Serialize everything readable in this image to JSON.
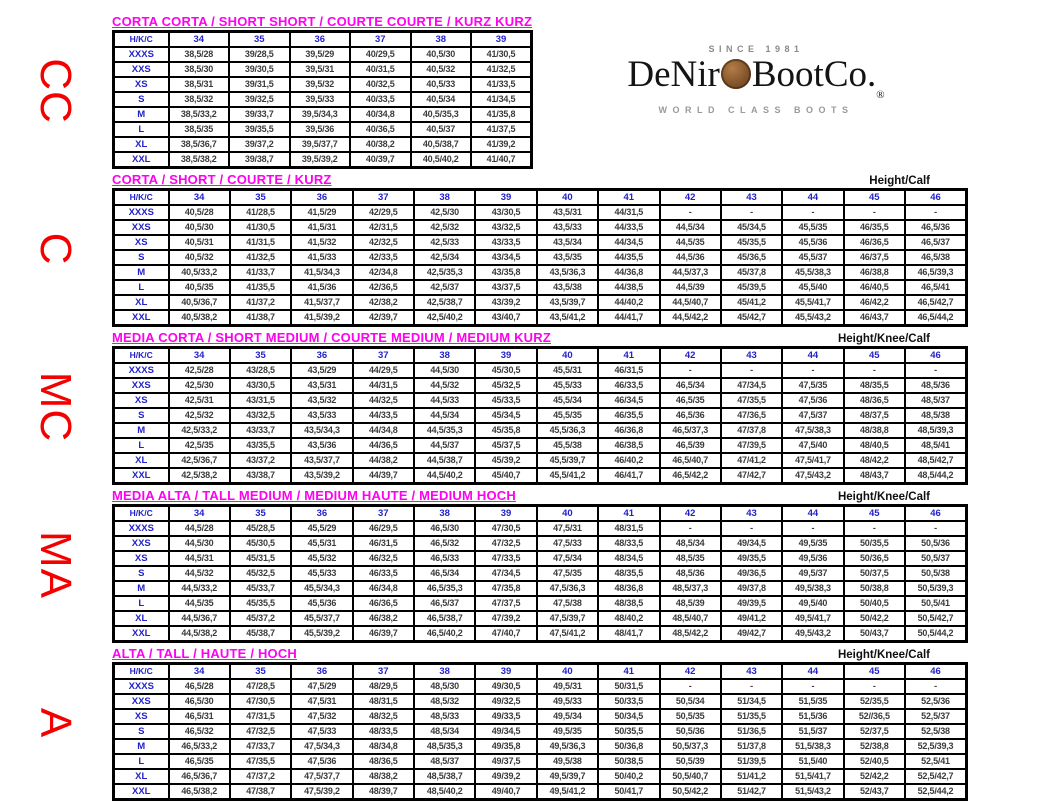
{
  "page": {
    "corner_header": "H/K/C",
    "colors": {
      "title_magenta": "#ff00f0",
      "header_blue": "#2222cc",
      "side_red": "#f50000",
      "cell_text": "#3b3b3b",
      "border_black": "#000000"
    },
    "logo": {
      "since": "SINCE 1981",
      "brand_prefix": "DeNir",
      "coin_icon": "copper-coin-o",
      "brand_suffix": "BootCo.",
      "registered_mark": "®",
      "tagline": "WORLD CLASS BOOTS"
    }
  },
  "tables": [
    {
      "side_label": "CC",
      "title": "CORTA CORTA / SHORT SHORT / COURTE COURTE / KURZ KURZ",
      "height_label": "",
      "columns": [
        "34",
        "35",
        "36",
        "37",
        "38",
        "39"
      ],
      "rows": [
        {
          "label": "XXXS",
          "values": [
            "38,5/28",
            "39/28,5",
            "39,5/29",
            "40/29,5",
            "40,5/30",
            "41/30,5"
          ]
        },
        {
          "label": "XXS",
          "values": [
            "38,5/30",
            "39/30,5",
            "39,5/31",
            "40/31,5",
            "40,5/32",
            "41/32,5"
          ]
        },
        {
          "label": "XS",
          "values": [
            "38,5/31",
            "39/31,5",
            "39,5/32",
            "40/32,5",
            "40,5/33",
            "41/33,5"
          ]
        },
        {
          "label": "S",
          "values": [
            "38,5/32",
            "39/32,5",
            "39,5/33",
            "40/33,5",
            "40,5/34",
            "41/34,5"
          ]
        },
        {
          "label": "M",
          "values": [
            "38,5/33,2",
            "39/33,7",
            "39,5/34,3",
            "40/34,8",
            "40,5/35,3",
            "41/35,8"
          ]
        },
        {
          "label": "L",
          "values": [
            "38,5/35",
            "39/35,5",
            "39,5/36",
            "40/36,5",
            "40,5/37",
            "41/37,5"
          ]
        },
        {
          "label": "XL",
          "values": [
            "38,5/36,7",
            "39/37,2",
            "39,5/37,7",
            "40/38,2",
            "40,5/38,7",
            "41/39,2"
          ]
        },
        {
          "label": "XXL",
          "values": [
            "38,5/38,2",
            "39/38,7",
            "39,5/39,2",
            "40/39,7",
            "40,5/40,2",
            "41/40,7"
          ]
        }
      ]
    },
    {
      "side_label": "C",
      "title": "CORTA / SHORT / COURTE / KURZ",
      "height_label": "Height/Calf",
      "columns": [
        "34",
        "35",
        "36",
        "37",
        "38",
        "39",
        "40",
        "41",
        "42",
        "43",
        "44",
        "45",
        "46"
      ],
      "rows": [
        {
          "label": "XXXS",
          "values": [
            "40,5/28",
            "41/28,5",
            "41,5/29",
            "42/29,5",
            "42,5/30",
            "43/30,5",
            "43,5/31",
            "44/31,5",
            "-",
            "-",
            "-",
            "-",
            "-"
          ]
        },
        {
          "label": "XXS",
          "values": [
            "40,5/30",
            "41/30,5",
            "41,5/31",
            "42/31,5",
            "42,5/32",
            "43/32,5",
            "43,5/33",
            "44/33,5",
            "44,5/34",
            "45/34,5",
            "45,5/35",
            "46/35,5",
            "46,5/36"
          ]
        },
        {
          "label": "XS",
          "values": [
            "40,5/31",
            "41/31,5",
            "41,5/32",
            "42/32,5",
            "42,5/33",
            "43/33,5",
            "43,5/34",
            "44/34,5",
            "44,5/35",
            "45/35,5",
            "45,5/36",
            "46/36,5",
            "46,5/37"
          ]
        },
        {
          "label": "S",
          "values": [
            "40,5/32",
            "41/32,5",
            "41,5/33",
            "42/33,5",
            "42,5/34",
            "43/34,5",
            "43,5/35",
            "44/35,5",
            "44,5/36",
            "45/36,5",
            "45,5/37",
            "46/37,5",
            "46,5/38"
          ]
        },
        {
          "label": "M",
          "values": [
            "40,5/33,2",
            "41/33,7",
            "41,5/34,3",
            "42/34,8",
            "42,5/35,3",
            "43/35,8",
            "43,5/36,3",
            "44/36,8",
            "44,5/37,3",
            "45/37,8",
            "45,5/38,3",
            "46/38,8",
            "46,5/39,3"
          ]
        },
        {
          "label": "L",
          "values": [
            "40,5/35",
            "41/35,5",
            "41,5/36",
            "42/36,5",
            "42,5/37",
            "43/37,5",
            "43,5/38",
            "44/38,5",
            "44,5/39",
            "45/39,5",
            "45,5/40",
            "46/40,5",
            "46,5/41"
          ]
        },
        {
          "label": "XL",
          "values": [
            "40,5/36,7",
            "41/37,2",
            "41,5/37,7",
            "42/38,2",
            "42,5/38,7",
            "43/39,2",
            "43,5/39,7",
            "44/40,2",
            "44,5/40,7",
            "45/41,2",
            "45,5/41,7",
            "46/42,2",
            "46,5/42,7"
          ]
        },
        {
          "label": "XXL",
          "values": [
            "40,5/38,2",
            "41/38,7",
            "41,5/39,2",
            "42/39,7",
            "42,5/40,2",
            "43/40,7",
            "43,5/41,2",
            "44/41,7",
            "44,5/42,2",
            "45/42,7",
            "45,5/43,2",
            "46/43,7",
            "46,5/44,2"
          ]
        }
      ]
    },
    {
      "side_label": "MC",
      "title": "MEDIA CORTA / SHORT MEDIUM / COURTE MEDIUM / MEDIUM KURZ",
      "height_label": "Height/Knee/Calf",
      "columns": [
        "34",
        "35",
        "36",
        "37",
        "38",
        "39",
        "40",
        "41",
        "42",
        "43",
        "44",
        "45",
        "46"
      ],
      "rows": [
        {
          "label": "XXXS",
          "values": [
            "42,5/28",
            "43/28,5",
            "43,5/29",
            "44/29,5",
            "44,5/30",
            "45/30,5",
            "45,5/31",
            "46/31,5",
            "-",
            "-",
            "-",
            "-",
            "-"
          ]
        },
        {
          "label": "XXS",
          "values": [
            "42,5/30",
            "43/30,5",
            "43,5/31",
            "44/31,5",
            "44,5/32",
            "45/32,5",
            "45,5/33",
            "46/33,5",
            "46,5/34",
            "47/34,5",
            "47,5/35",
            "48/35,5",
            "48,5/36"
          ]
        },
        {
          "label": "XS",
          "values": [
            "42,5/31",
            "43/31,5",
            "43,5/32",
            "44/32,5",
            "44,5/33",
            "45/33,5",
            "45,5/34",
            "46/34,5",
            "46,5/35",
            "47/35,5",
            "47,5/36",
            "48/36,5",
            "48,5/37"
          ]
        },
        {
          "label": "S",
          "values": [
            "42,5/32",
            "43/32,5",
            "43,5/33",
            "44/33,5",
            "44,5/34",
            "45/34,5",
            "45,5/35",
            "46/35,5",
            "46,5/36",
            "47/36,5",
            "47,5/37",
            "48/37,5",
            "48,5/38"
          ]
        },
        {
          "label": "M",
          "values": [
            "42,5/33,2",
            "43/33,7",
            "43,5/34,3",
            "44/34,8",
            "44,5/35,3",
            "45/35,8",
            "45,5/36,3",
            "46/36,8",
            "46,5/37,3",
            "47/37,8",
            "47,5/38,3",
            "48/38,8",
            "48,5/39,3"
          ]
        },
        {
          "label": "L",
          "values": [
            "42,5/35",
            "43/35,5",
            "43,5/36",
            "44/36,5",
            "44,5/37",
            "45/37,5",
            "45,5/38",
            "46/38,5",
            "46,5/39",
            "47/39,5",
            "47,5/40",
            "48/40,5",
            "48,5/41"
          ]
        },
        {
          "label": "XL",
          "values": [
            "42,5/36,7",
            "43/37,2",
            "43,5/37,7",
            "44/38,2",
            "44,5/38,7",
            "45/39,2",
            "45,5/39,7",
            "46/40,2",
            "46,5/40,7",
            "47/41,2",
            "47,5/41,7",
            "48/42,2",
            "48,5/42,7"
          ]
        },
        {
          "label": "XXL",
          "values": [
            "42,5/38,2",
            "43/38,7",
            "43,5/39,2",
            "44/39,7",
            "44,5/40,2",
            "45/40,7",
            "45,5/41,2",
            "46/41,7",
            "46,5/42,2",
            "47/42,7",
            "47,5/43,2",
            "48/43,7",
            "48,5/44,2"
          ]
        }
      ]
    },
    {
      "side_label": "MA",
      "title": "MEDIA ALTA / TALL MEDIUM / MEDIUM HAUTE / MEDIUM HOCH",
      "height_label": "Height/Knee/Calf",
      "columns": [
        "34",
        "35",
        "36",
        "37",
        "38",
        "39",
        "40",
        "41",
        "42",
        "43",
        "44",
        "45",
        "46"
      ],
      "rows": [
        {
          "label": "XXXS",
          "values": [
            "44,5/28",
            "45/28,5",
            "45,5/29",
            "46/29,5",
            "46,5/30",
            "47/30,5",
            "47,5/31",
            "48/31,5",
            "-",
            "-",
            "-",
            "-",
            "-"
          ]
        },
        {
          "label": "XXS",
          "values": [
            "44,5/30",
            "45/30,5",
            "45,5/31",
            "46/31,5",
            "46,5/32",
            "47/32,5",
            "47,5/33",
            "48/33,5",
            "48,5/34",
            "49/34,5",
            "49,5/35",
            "50/35,5",
            "50,5/36"
          ]
        },
        {
          "label": "XS",
          "values": [
            "44,5/31",
            "45/31,5",
            "45,5/32",
            "46/32,5",
            "46,5/33",
            "47/33,5",
            "47,5/34",
            "48/34,5",
            "48,5/35",
            "49/35,5",
            "49,5/36",
            "50/36,5",
            "50,5/37"
          ]
        },
        {
          "label": "S",
          "values": [
            "44,5/32",
            "45/32,5",
            "45,5/33",
            "46/33,5",
            "46,5/34",
            "47/34,5",
            "47,5/35",
            "48/35,5",
            "48,5/36",
            "49/36,5",
            "49,5/37",
            "50/37,5",
            "50,5/38"
          ]
        },
        {
          "label": "M",
          "values": [
            "44,5/33,2",
            "45/33,7",
            "45,5/34,3",
            "46/34,8",
            "46,5/35,3",
            "47/35,8",
            "47,5/36,3",
            "48/36,8",
            "48,5/37,3",
            "49/37,8",
            "49,5/38,3",
            "50/38,8",
            "50,5/39,3"
          ]
        },
        {
          "label": "L",
          "values": [
            "44,5/35",
            "45/35,5",
            "45,5/36",
            "46/36,5",
            "46,5/37",
            "47/37,5",
            "47,5/38",
            "48/38,5",
            "48,5/39",
            "49/39,5",
            "49,5/40",
            "50/40,5",
            "50,5/41"
          ]
        },
        {
          "label": "XL",
          "values": [
            "44,5/36,7",
            "45/37,2",
            "45,5/37,7",
            "46/38,2",
            "46,5/38,7",
            "47/39,2",
            "47,5/39,7",
            "48/40,2",
            "48,5/40,7",
            "49/41,2",
            "49,5/41,7",
            "50/42,2",
            "50,5/42,7"
          ]
        },
        {
          "label": "XXL",
          "values": [
            "44,5/38,2",
            "45/38,7",
            "45,5/39,2",
            "46/39,7",
            "46,5/40,2",
            "47/40,7",
            "47,5/41,2",
            "48/41,7",
            "48,5/42,2",
            "49/42,7",
            "49,5/43,2",
            "50/43,7",
            "50,5/44,2"
          ]
        }
      ]
    },
    {
      "side_label": "A",
      "title": "ALTA / TALL / HAUTE / HOCH",
      "height_label": "Height/Knee/Calf",
      "columns": [
        "34",
        "35",
        "36",
        "37",
        "38",
        "39",
        "40",
        "41",
        "42",
        "43",
        "44",
        "45",
        "46"
      ],
      "rows": [
        {
          "label": "XXXS",
          "values": [
            "46,5/28",
            "47/28,5",
            "47,5/29",
            "48/29,5",
            "48,5/30",
            "49/30,5",
            "49,5/31",
            "50/31,5",
            "-",
            "-",
            "-",
            "-",
            "-"
          ]
        },
        {
          "label": "XXS",
          "values": [
            "46,5/30",
            "47/30,5",
            "47,5/31",
            "48/31,5",
            "48,5/32",
            "49/32,5",
            "49,5/33",
            "50/33,5",
            "50,5/34",
            "51/34,5",
            "51,5/35",
            "52/35,5",
            "52,5/36"
          ]
        },
        {
          "label": "XS",
          "values": [
            "46,5/31",
            "47/31,5",
            "47,5/32",
            "48/32,5",
            "48,5/33",
            "49/33,5",
            "49,5/34",
            "50/34,5",
            "50,5/35",
            "51/35,5",
            "51,5/36",
            "52//36,5",
            "52,5/37"
          ]
        },
        {
          "label": "S",
          "values": [
            "46,5/32",
            "47/32,5",
            "47,5/33",
            "48/33,5",
            "48,5/34",
            "49/34,5",
            "49,5/35",
            "50/35,5",
            "50,5/36",
            "51/36,5",
            "51,5/37",
            "52/37,5",
            "52,5/38"
          ]
        },
        {
          "label": "M",
          "values": [
            "46,5/33,2",
            "47/33,7",
            "47,5/34,3",
            "48/34,8",
            "48,5/35,3",
            "49/35,8",
            "49,5/36,3",
            "50/36,8",
            "50,5/37,3",
            "51/37,8",
            "51,5/38,3",
            "52/38,8",
            "52,5/39,3"
          ]
        },
        {
          "label": "L",
          "values": [
            "46,5/35",
            "47/35,5",
            "47,5/36",
            "48/36,5",
            "48,5/37",
            "49/37,5",
            "49,5/38",
            "50/38,5",
            "50,5/39",
            "51/39,5",
            "51,5/40",
            "52/40,5",
            "52,5/41"
          ]
        },
        {
          "label": "XL",
          "values": [
            "46,5/36,7",
            "47/37,2",
            "47,5/37,7",
            "48/38,2",
            "48,5/38,7",
            "49/39,2",
            "49,5/39,7",
            "50/40,2",
            "50,5/40,7",
            "51/41,2",
            "51,5/41,7",
            "52/42,2",
            "52,5/42,7"
          ]
        },
        {
          "label": "XXL",
          "values": [
            "46,5/38,2",
            "47/38,7",
            "47,5/39,2",
            "48/39,7",
            "48,5/40,2",
            "49/40,7",
            "49,5/41,2",
            "50/41,7",
            "50,5/42,2",
            "51/42,7",
            "51,5/43,2",
            "52/43,7",
            "52,5/44,2"
          ]
        }
      ]
    }
  ]
}
